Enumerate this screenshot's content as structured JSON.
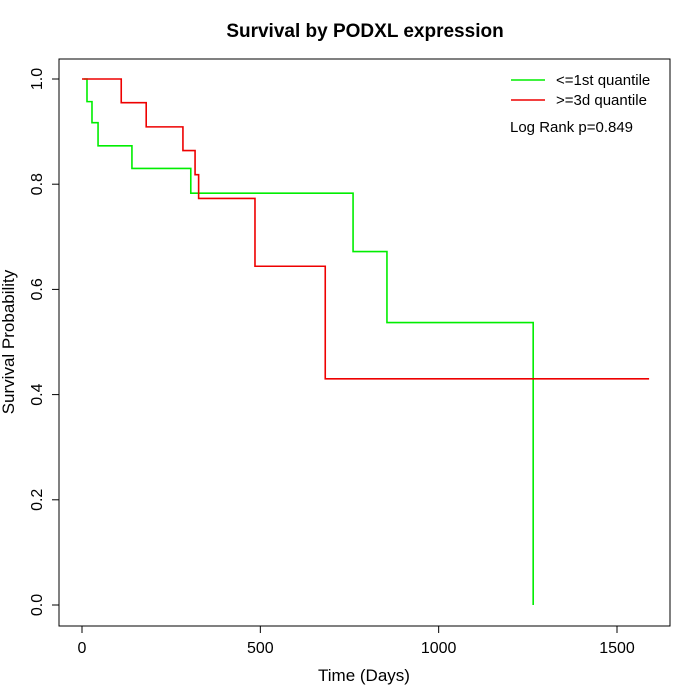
{
  "chart_data": {
    "type": "line",
    "subtype": "kaplan-meier-step",
    "title": "Survival by PODXL expression",
    "xlabel": "Time (Days)",
    "ylabel": "Survival Probability",
    "xlim": [
      0,
      1600
    ],
    "ylim": [
      0,
      1
    ],
    "xticks": [
      0,
      500,
      1000,
      1500
    ],
    "xtick_labels": [
      "0",
      "500",
      "1000",
      "1500"
    ],
    "yticks": [
      0,
      0.2,
      0.4,
      0.6,
      0.8,
      1.0
    ],
    "ytick_labels": [
      "0.0",
      "0.2",
      "0.4",
      "0.6",
      "0.8",
      "1.0"
    ],
    "grid": false,
    "legend_position": "top-right",
    "annotation": "Log Rank p=0.849",
    "series": [
      {
        "name": "<=1st quantile",
        "color": "#00ee00",
        "points": [
          [
            5,
            1.0
          ],
          [
            14,
            0.957
          ],
          [
            28,
            0.917
          ],
          [
            45,
            0.873
          ],
          [
            140,
            0.83
          ],
          [
            305,
            0.783
          ],
          [
            760,
            0.672
          ],
          [
            855,
            0.537
          ],
          [
            1265,
            0.0
          ]
        ]
      },
      {
        "name": ">=3d quantile",
        "color": "#ee0000",
        "points": [
          [
            0,
            1.0
          ],
          [
            110,
            0.955
          ],
          [
            180,
            0.909
          ],
          [
            283,
            0.864
          ],
          [
            317,
            0.818
          ],
          [
            327,
            0.773
          ],
          [
            485,
            0.644
          ],
          [
            682,
            0.43
          ],
          [
            1590,
            0.43
          ]
        ]
      }
    ]
  }
}
